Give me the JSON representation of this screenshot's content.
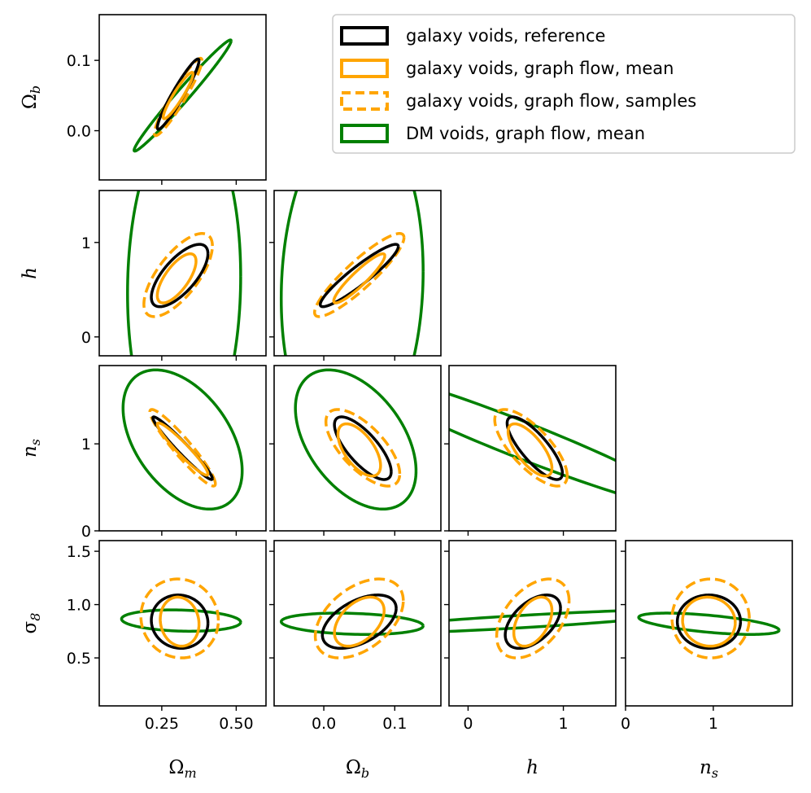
{
  "chart_data": {
    "type": "corner",
    "title": "",
    "parameters": [
      {
        "name": "Omega_m",
        "label": "Ω_m",
        "ticks": [
          0.25,
          0.5
        ],
        "tick_labels": [
          "0.25",
          "0.50"
        ],
        "lim": [
          0.04,
          0.6
        ]
      },
      {
        "name": "Omega_b",
        "label": "Ω_b",
        "ticks": [
          0.0,
          0.1
        ],
        "tick_labels": [
          "0.0",
          "0.1"
        ],
        "lim": [
          -0.07,
          0.165
        ]
      },
      {
        "name": "h",
        "label": "h",
        "ticks": [
          0,
          1
        ],
        "tick_labels": [
          "0",
          "1"
        ],
        "lim": [
          -0.2,
          1.55
        ]
      },
      {
        "name": "n_s",
        "label": "n_s",
        "ticks": [
          0,
          1
        ],
        "tick_labels": [
          "0",
          "1"
        ],
        "lim": [
          0.0,
          1.9
        ]
      },
      {
        "name": "sigma_8",
        "label": "σ_8",
        "ticks": [
          0.5,
          1.0,
          1.5
        ],
        "tick_labels": [
          "0.5",
          "1.0",
          "1.5"
        ],
        "lim": [
          0.05,
          1.6
        ]
      }
    ],
    "legend": {
      "position": "top-right",
      "entries": [
        {
          "key": "ref",
          "label": "galaxy voids, reference",
          "color": "#000000",
          "dashed": false
        },
        {
          "key": "gal_mean",
          "label": "galaxy voids, graph flow, mean",
          "color": "#FFA500",
          "dashed": false
        },
        {
          "key": "gal_samples",
          "label": "galaxy voids, graph flow, samples",
          "color": "#FFA500",
          "dashed": true
        },
        {
          "key": "dm_mean",
          "label": "DM voids, graph flow, mean",
          "color": "#008000",
          "dashed": false
        }
      ]
    },
    "panels": [
      {
        "x": "Omega_m",
        "y": "Omega_b",
        "ellipses": {
          "ref": {
            "center": [
              0.305,
              0.052
            ],
            "sx": 0.07,
            "sy": 0.05,
            "rho": 0.95
          },
          "gal_mean": {
            "center": [
              0.305,
              0.05
            ],
            "sx": 0.05,
            "sy": 0.033,
            "rho": 0.93
          },
          "gal_samples": {
            "center": [
              0.305,
              0.048
            ],
            "sx": 0.08,
            "sy": 0.055,
            "rho": 0.94
          },
          "dm_mean": {
            "center": [
              0.32,
              0.05
            ],
            "sx": 0.163,
            "sy": 0.079,
            "rho": 0.985
          }
        }
      },
      {
        "x": "Omega_m",
        "y": "h",
        "ellipses": {
          "ref": {
            "center": [
              0.31,
              0.65
            ],
            "sx": 0.095,
            "sy": 0.33,
            "rho": 0.7
          },
          "gal_mean": {
            "center": [
              0.3,
              0.62
            ],
            "sx": 0.065,
            "sy": 0.26,
            "rho": 0.7
          },
          "gal_samples": {
            "center": [
              0.305,
              0.655
            ],
            "sx": 0.115,
            "sy": 0.44,
            "rho": 0.7
          },
          "dm_mean": {
            "center": [
              0.325,
              0.55
            ],
            "sx": 0.19,
            "sy": 1.8,
            "rho": 0.05
          }
        }
      },
      {
        "x": "Omega_b",
        "y": "h",
        "ellipses": {
          "ref": {
            "center": [
              0.05,
              0.65
            ],
            "sx": 0.055,
            "sy": 0.33,
            "rho": 0.93
          },
          "gal_mean": {
            "center": [
              0.05,
              0.62
            ],
            "sx": 0.036,
            "sy": 0.26,
            "rho": 0.92
          },
          "gal_samples": {
            "center": [
              0.05,
              0.655
            ],
            "sx": 0.063,
            "sy": 0.44,
            "rho": 0.9
          },
          "dm_mean": {
            "center": [
              0.04,
              0.55
            ],
            "sx": 0.1,
            "sy": 1.8,
            "rho": 0.08
          }
        }
      },
      {
        "x": "Omega_m",
        "y": "n_s",
        "ellipses": {
          "ref": {
            "center": [
              0.32,
              0.95
            ],
            "sx": 0.1,
            "sy": 0.36,
            "rho": -0.97
          },
          "gal_mean": {
            "center": [
              0.32,
              0.94
            ],
            "sx": 0.085,
            "sy": 0.3,
            "rho": -0.95
          },
          "gal_samples": {
            "center": [
              0.32,
              0.955
            ],
            "sx": 0.11,
            "sy": 0.44,
            "rho": -0.94
          },
          "dm_mean": {
            "center": [
              0.32,
              1.05
            ],
            "sx": 0.2,
            "sy": 0.8,
            "rho": -0.45
          }
        }
      },
      {
        "x": "Omega_b",
        "y": "n_s",
        "ellipses": {
          "ref": {
            "center": [
              0.055,
              0.95
            ],
            "sx": 0.04,
            "sy": 0.36,
            "rho": -0.75
          },
          "gal_mean": {
            "center": [
              0.05,
              0.93
            ],
            "sx": 0.03,
            "sy": 0.3,
            "rho": -0.6
          },
          "gal_samples": {
            "center": [
              0.055,
              0.955
            ],
            "sx": 0.052,
            "sy": 0.44,
            "rho": -0.68
          },
          "dm_mean": {
            "center": [
              0.045,
              1.05
            ],
            "sx": 0.085,
            "sy": 0.8,
            "rho": -0.45
          }
        }
      },
      {
        "x": "h",
        "y": "n_s",
        "ellipses": {
          "ref": {
            "center": [
              0.7,
              0.95
            ],
            "sx": 0.29,
            "sy": 0.36,
            "rho": -0.8
          },
          "gal_mean": {
            "center": [
              0.65,
              0.93
            ],
            "sx": 0.23,
            "sy": 0.3,
            "rho": -0.7
          },
          "gal_samples": {
            "center": [
              0.66,
              0.955
            ],
            "sx": 0.38,
            "sy": 0.44,
            "rho": -0.73
          },
          "dm_mean": {
            "center": [
              0.55,
              1.05
            ],
            "sx": 1.8,
            "sy": 0.8,
            "rho": -0.96
          }
        }
      },
      {
        "x": "Omega_m",
        "y": "sigma_8",
        "ellipses": {
          "ref": {
            "center": [
              0.31,
              0.84
            ],
            "sx": 0.095,
            "sy": 0.25,
            "rho": -0.05
          },
          "gal_mean": {
            "center": [
              0.31,
              0.84
            ],
            "sx": 0.065,
            "sy": 0.23,
            "rho": -0.1
          },
          "gal_samples": {
            "center": [
              0.31,
              0.87
            ],
            "sx": 0.13,
            "sy": 0.37,
            "rho": -0.05
          },
          "dm_mean": {
            "center": [
              0.315,
              0.85
            ],
            "sx": 0.2,
            "sy": 0.1,
            "rho": -0.15
          }
        }
      },
      {
        "x": "Omega_b",
        "y": "sigma_8",
        "ellipses": {
          "ref": {
            "center": [
              0.05,
              0.84
            ],
            "sx": 0.052,
            "sy": 0.25,
            "rho": 0.5
          },
          "gal_mean": {
            "center": [
              0.05,
              0.84
            ],
            "sx": 0.035,
            "sy": 0.23,
            "rho": 0.45
          },
          "gal_samples": {
            "center": [
              0.05,
              0.87
            ],
            "sx": 0.062,
            "sy": 0.37,
            "rho": 0.45
          },
          "dm_mean": {
            "center": [
              0.04,
              0.82
            ],
            "sx": 0.1,
            "sy": 0.1,
            "rho": -0.2
          }
        }
      },
      {
        "x": "h",
        "y": "sigma_8",
        "ellipses": {
          "ref": {
            "center": [
              0.68,
              0.84
            ],
            "sx": 0.29,
            "sy": 0.25,
            "rho": 0.5
          },
          "gal_mean": {
            "center": [
              0.68,
              0.84
            ],
            "sx": 0.2,
            "sy": 0.23,
            "rho": 0.45
          },
          "gal_samples": {
            "center": [
              0.68,
              0.87
            ],
            "sx": 0.38,
            "sy": 0.37,
            "rho": 0.45
          },
          "dm_mean": {
            "center": [
              0.55,
              0.84
            ],
            "sx": 1.8,
            "sy": 0.11,
            "rho": 0.85
          }
        }
      },
      {
        "x": "n_s",
        "y": "sigma_8",
        "ellipses": {
          "ref": {
            "center": [
              0.95,
              0.84
            ],
            "sx": 0.36,
            "sy": 0.25,
            "rho": 0.0
          },
          "gal_mean": {
            "center": [
              0.95,
              0.84
            ],
            "sx": 0.3,
            "sy": 0.23,
            "rho": -0.05
          },
          "gal_samples": {
            "center": [
              0.97,
              0.87
            ],
            "sx": 0.44,
            "sy": 0.37,
            "rho": 0.0
          },
          "dm_mean": {
            "center": [
              0.95,
              0.82
            ],
            "sx": 0.8,
            "sy": 0.1,
            "rho": -0.6
          }
        }
      }
    ]
  }
}
